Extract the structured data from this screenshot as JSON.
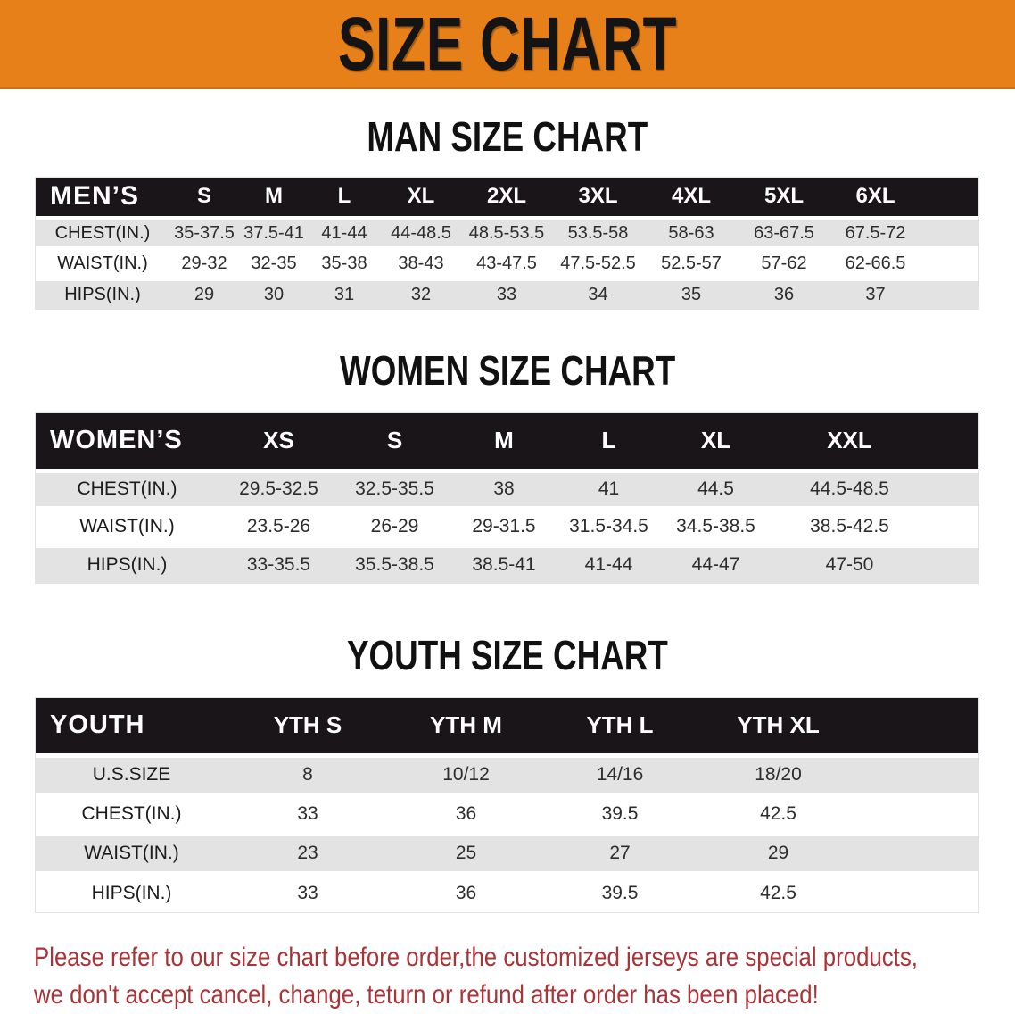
{
  "banner": {
    "title": "SIZE CHART"
  },
  "sections": [
    {
      "heading": "MAN SIZE CHART"
    },
    {
      "heading": "WOMEN SIZE CHART"
    },
    {
      "heading": "YOUTH SIZE CHART"
    }
  ],
  "tables": {
    "men": {
      "header": [
        "MEN’S",
        "S",
        "M",
        "L",
        "XL",
        "2XL",
        "3XL",
        "4XL",
        "5XL",
        "6XL"
      ],
      "rows": [
        [
          "CHEST(IN.)",
          "35-37.5",
          "37.5-41",
          "41-44",
          "44-48.5",
          "48.5-53.5",
          "53.5-58",
          "58-63",
          "63-67.5",
          "67.5-72"
        ],
        [
          "WAIST(IN.)",
          "29-32",
          "32-35",
          "35-38",
          "38-43",
          "43-47.5",
          "47.5-52.5",
          "52.5-57",
          "57-62",
          "62-66.5"
        ],
        [
          "HIPS(IN.)",
          "29",
          "30",
          "31",
          "32",
          "33",
          "34",
          "35",
          "36",
          "37"
        ]
      ]
    },
    "women": {
      "header": [
        "WOMEN’S",
        "XS",
        "S",
        "M",
        "L",
        "XL",
        "XXL"
      ],
      "rows": [
        [
          "CHEST(IN.)",
          "29.5-32.5",
          "32.5-35.5",
          "38",
          "41",
          "44.5",
          "44.5-48.5"
        ],
        [
          "WAIST(IN.)",
          "23.5-26",
          "26-29",
          "29-31.5",
          "31.5-34.5",
          "34.5-38.5",
          "38.5-42.5"
        ],
        [
          "HIPS(IN.)",
          "33-35.5",
          "35.5-38.5",
          "38.5-41",
          "41-44",
          "44-47",
          "47-50"
        ]
      ]
    },
    "youth": {
      "header": [
        "YOUTH",
        "YTH S",
        "YTH M",
        "YTH L",
        "YTH XL"
      ],
      "rows": [
        [
          "U.S.SIZE",
          "8",
          "10/12",
          "14/16",
          "18/20"
        ],
        [
          "CHEST(IN.)",
          "33",
          "36",
          "39.5",
          "42.5"
        ],
        [
          "WAIST(IN.)",
          "23",
          "25",
          "27",
          "29"
        ],
        [
          "HIPS(IN.)",
          "33",
          "36",
          "39.5",
          "42.5"
        ]
      ]
    }
  },
  "footer": {
    "line1": "Please refer to our size chart before order,the customized jerseys are special products,",
    "line2": "we don't accept cancel, change, teturn or refund after order has been placed!"
  },
  "colors": {
    "banner_bg": "#E8801A",
    "table_header_bg": "#1A1518",
    "stripe_row_bg": "#E3E3E3",
    "footer_text": "#A93438"
  }
}
